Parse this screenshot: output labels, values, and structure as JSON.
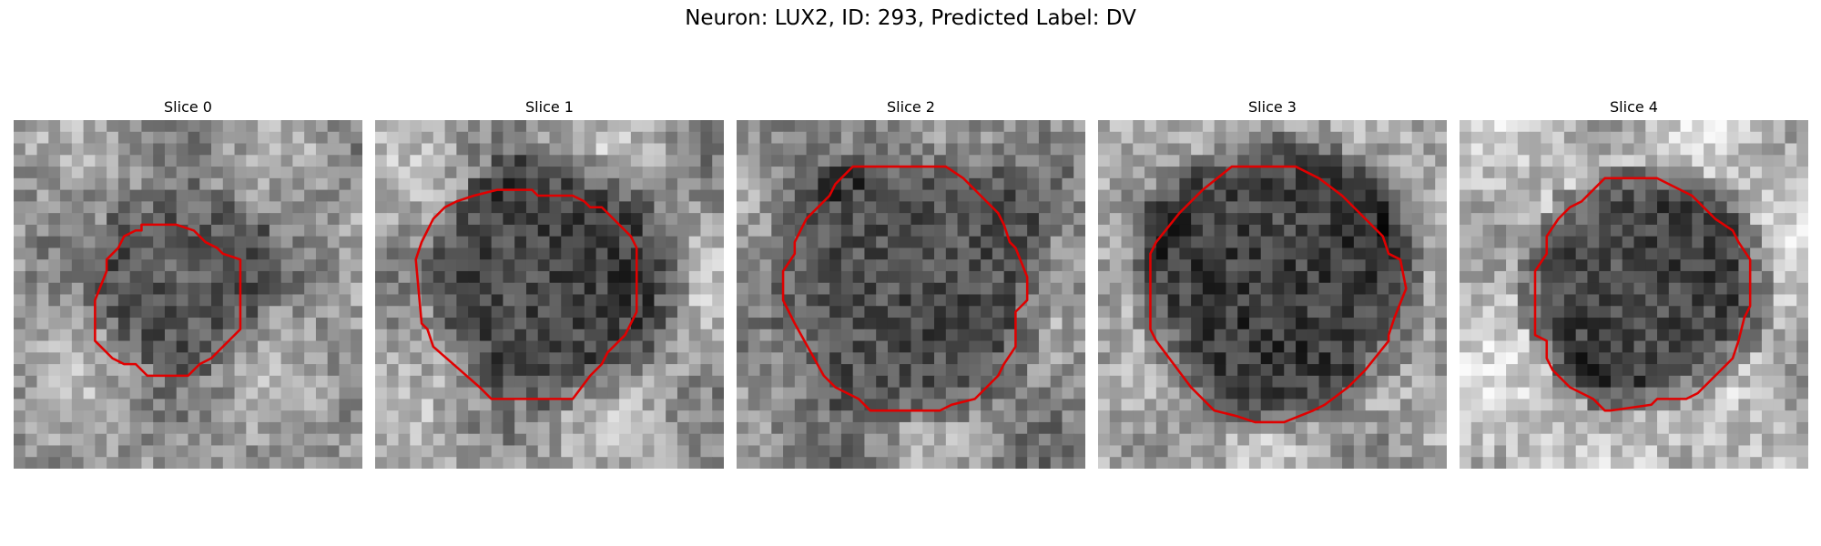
{
  "figure": {
    "title": "Neuron: LUX2, ID: 293, Predicted Label: DV"
  },
  "colors": {
    "contour": "#e00000",
    "background": "#ffffff"
  },
  "panels": [
    {
      "title": "Slice 0",
      "content": "grayscale microscopy tile, 30×30 pixels, dark cell body outlined by red contour"
    },
    {
      "title": "Slice 1",
      "content": "grayscale microscopy tile, 30×30 pixels, dark cell body outlined by red contour"
    },
    {
      "title": "Slice 2",
      "content": "grayscale microscopy tile, 30×30 pixels, dark cell body outlined by red contour"
    },
    {
      "title": "Slice 3",
      "content": "grayscale microscopy tile, 30×30 pixels, dark cell body outlined by red contour"
    },
    {
      "title": "Slice 4",
      "content": "grayscale microscopy tile, 30×30 pixels, dark cell body outlined by red contour"
    }
  ]
}
